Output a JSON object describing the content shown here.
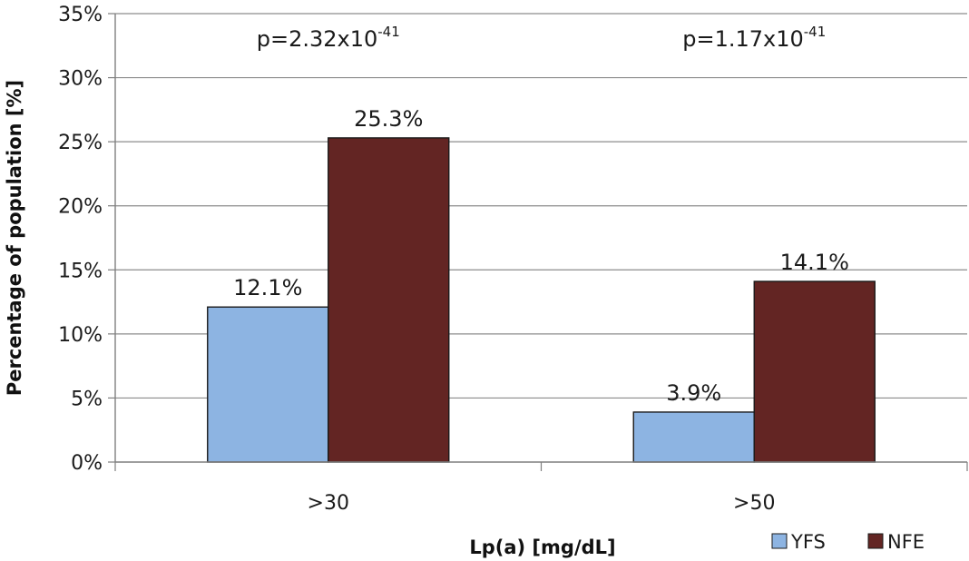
{
  "chart_data": {
    "type": "bar",
    "categories": [
      ">30",
      ">50"
    ],
    "series": [
      {
        "name": "YFS",
        "values": [
          12.1,
          3.9
        ],
        "color": "#8DB4E2"
      },
      {
        "name": "NFE",
        "values": [
          25.3,
          14.1
        ],
        "color": "#632523"
      }
    ],
    "data_labels": [
      [
        "12.1%",
        "3.9%"
      ],
      [
        "25.3%",
        "14.1%"
      ]
    ],
    "annotations": [
      {
        "base": "p=2.32x10",
        "exp": "-41",
        "category": ">30"
      },
      {
        "base": "p=1.17x10",
        "exp": "-41",
        "category": ">50"
      }
    ],
    "y_ticks": [
      "0%",
      "5%",
      "10%",
      "15%",
      "20%",
      "25%",
      "30%",
      "35%"
    ],
    "ylim": [
      0,
      35
    ],
    "xlabel": "Lp(a) [mg/dL]",
    "ylabel": "Percentage of population [%]",
    "grid": true,
    "legend_position": "bottom-right"
  }
}
